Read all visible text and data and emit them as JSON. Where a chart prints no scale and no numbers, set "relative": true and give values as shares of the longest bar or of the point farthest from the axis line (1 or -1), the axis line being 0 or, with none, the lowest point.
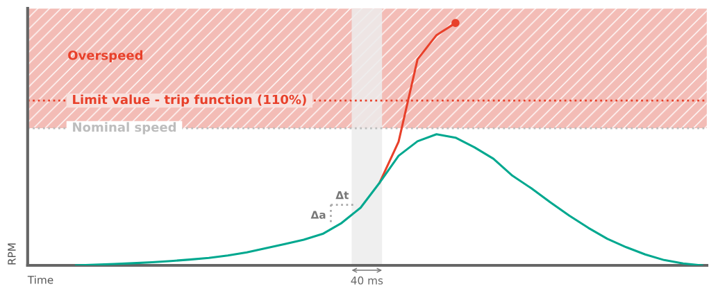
{
  "chart_data": {
    "type": "line",
    "relative": true,
    "xlabel": "Time",
    "legend": false,
    "line_style": "solid",
    "categories": [
      null,
      null,
      null,
      null,
      null,
      null,
      null,
      null,
      null,
      null,
      null,
      null,
      null,
      null,
      null,
      null,
      null,
      null,
      null,
      null,
      null,
      null,
      null,
      null,
      null,
      null,
      null,
      null,
      null,
      null,
      null,
      null,
      null,
      null
    ],
    "series": [
      {
        "color": "#e8402a",
        "values": [
          null,
          null,
          null,
          null,
          null,
          null,
          null,
          null,
          null,
          null,
          null,
          null,
          null,
          null,
          null,
          null,
          0.341,
          0.51,
          0.85,
          0.95,
          1.0,
          null,
          null,
          null,
          null,
          null,
          null,
          null,
          null,
          null,
          null,
          null,
          null,
          null
        ]
      },
      {
        "color": "#00a88f",
        "values": [
          0,
          0.003,
          0.006,
          0.009,
          0.013,
          0.018,
          0.024,
          0.031,
          0.041,
          0.054,
          0.071,
          0.088,
          0.106,
          0.13,
          0.175,
          0.238,
          0.341,
          0.452,
          0.512,
          0.541,
          0.527,
          0.487,
          0.44,
          0.37,
          0.318,
          0.26,
          0.205,
          0.155,
          0.11,
          0.075,
          0.045,
          0.022,
          0.008,
          0
        ]
      }
    ],
    "bands": [
      {
        "axis": "y",
        "from": 0.566,
        "to": 1.06,
        "label": "Overspeed",
        "color": "#f3bcb6"
      }
    ],
    "ref_lines": [
      {
        "axis": "y",
        "value": 0.68,
        "label": "Limit value - trip function (110%)",
        "color": "#e8402a",
        "line_style": "dotted"
      },
      {
        "axis": "y",
        "value": 0.566,
        "label": "Nominal speed",
        "color": "#bdbdbd",
        "line_style": "dotted"
      }
    ],
    "annotations": [
      "Δa",
      "Δt",
      "40 ms",
      "RPM"
    ]
  }
}
